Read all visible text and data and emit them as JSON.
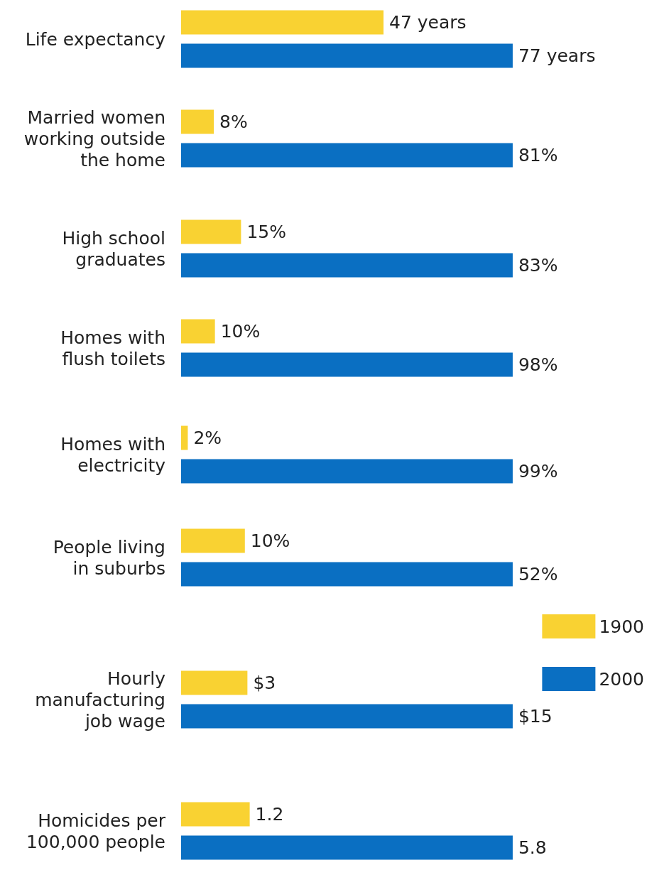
{
  "chart_data": [
    {
      "type": "bar",
      "orientation": "horizontal",
      "categories": [
        "Life expectancy"
      ],
      "series": [
        {
          "color": "#f9d232",
          "values": [
            47
          ],
          "value_labels": [
            "47 years"
          ]
        },
        {
          "color": "#0a6fc2",
          "values": [
            77
          ],
          "value_labels": [
            "77 years"
          ]
        }
      ]
    },
    {
      "type": "bar",
      "orientation": "horizontal",
      "categories": [
        "Married women\nworking outside\nthe home"
      ],
      "series": [
        {
          "color": "#f9d232",
          "values": [
            8
          ],
          "value_labels": [
            "8%"
          ]
        },
        {
          "color": "#0a6fc2",
          "values": [
            81
          ],
          "value_labels": [
            "81%"
          ]
        }
      ]
    },
    {
      "type": "bar",
      "orientation": "horizontal",
      "categories": [
        "High school\ngraduates"
      ],
      "series": [
        {
          "color": "#f9d232",
          "values": [
            15
          ],
          "value_labels": [
            "15%"
          ]
        },
        {
          "color": "#0a6fc2",
          "values": [
            83
          ],
          "value_labels": [
            "83%"
          ]
        }
      ]
    },
    {
      "type": "bar",
      "orientation": "horizontal",
      "categories": [
        "Homes with\nflush toilets"
      ],
      "series": [
        {
          "color": "#f9d232",
          "values": [
            10
          ],
          "value_labels": [
            "10%"
          ]
        },
        {
          "color": "#0a6fc2",
          "values": [
            98
          ],
          "value_labels": [
            "98%"
          ]
        }
      ]
    },
    {
      "type": "bar",
      "orientation": "horizontal",
      "categories": [
        "Homes with\nelectricity"
      ],
      "series": [
        {
          "color": "#f9d232",
          "values": [
            2
          ],
          "value_labels": [
            "2%"
          ]
        },
        {
          "color": "#0a6fc2",
          "values": [
            99
          ],
          "value_labels": [
            "99%"
          ]
        }
      ]
    },
    {
      "type": "bar",
      "orientation": "horizontal",
      "categories": [
        "People living\nin suburbs"
      ],
      "series": [
        {
          "color": "#f9d232",
          "values": [
            10
          ],
          "value_labels": [
            "10%"
          ]
        },
        {
          "color": "#0a6fc2",
          "values": [
            52
          ],
          "value_labels": [
            "52%"
          ]
        }
      ]
    },
    {
      "type": "bar",
      "orientation": "horizontal",
      "categories": [
        "Hourly\nmanufacturing\njob wage"
      ],
      "legend": "top right",
      "series": [
        {
          "name": "1900",
          "color": "#f9d232",
          "values": [
            3
          ],
          "value_labels": [
            "$3"
          ]
        },
        {
          "name": "2000",
          "color": "#0a6fc2",
          "values": [
            15
          ],
          "value_labels": [
            "$15"
          ]
        }
      ]
    },
    {
      "type": "bar",
      "orientation": "horizontal",
      "categories": [
        "Homicides per\n100,000 people"
      ],
      "series": [
        {
          "color": "#f9d232",
          "values": [
            1.2
          ],
          "value_labels": [
            "1.2"
          ]
        },
        {
          "color": "#0a6fc2",
          "values": [
            5.8
          ],
          "value_labels": [
            "5.8"
          ]
        }
      ]
    }
  ]
}
